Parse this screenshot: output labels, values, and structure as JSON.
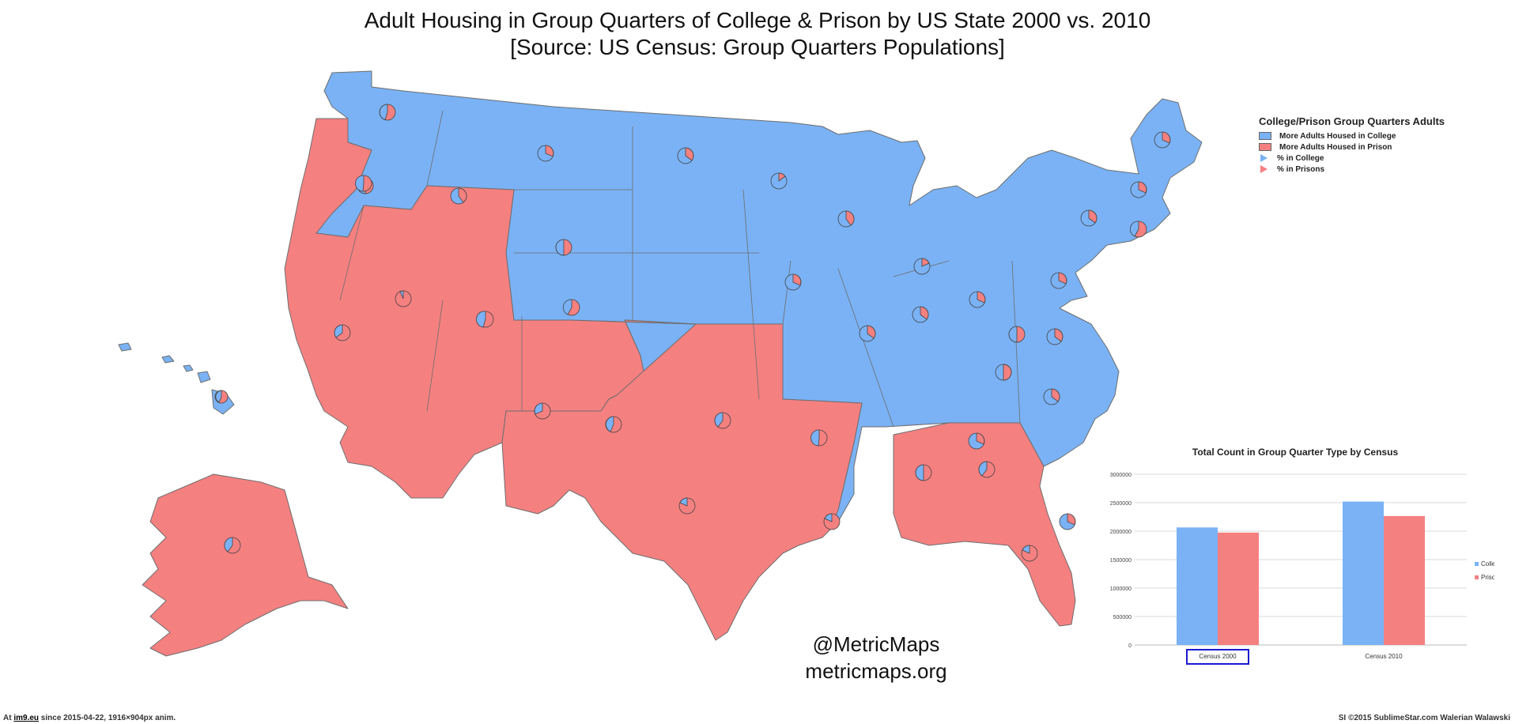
{
  "title": "Adult Housing in Group Quarters of  College & Prison by US State 2000 vs. 2010",
  "subtitle": "[Source:  US Census: Group Quarters Populations]",
  "colors": {
    "college": "#7ab2f5",
    "prison": "#f58080",
    "border": "#6e6e6e",
    "grid": "#d9d9d9"
  },
  "legend": {
    "title": "College/Prison Group Quarters Adults",
    "items": [
      {
        "label": "More Adults Housed in College",
        "kind": "swatch",
        "color": "#7ab2f5"
      },
      {
        "label": "More Adults Housed in Prison",
        "kind": "swatch",
        "color": "#f58080"
      },
      {
        "label": "% in College",
        "kind": "triangle",
        "color": "#7ab2f5"
      },
      {
        "label": "% in Prisons",
        "kind": "triangle",
        "color": "#f58080"
      }
    ]
  },
  "credits": {
    "handle": "@MetricMaps",
    "site": "metricmaps.org"
  },
  "footer": {
    "left_prefix": "At ",
    "left_link": "im9.eu",
    "left_suffix": " since 2015-04-22, 1916×904px anim.",
    "right": "SI ©2015 SublimeStar.com Walerian Walawski"
  },
  "chart_data": {
    "type": "bar",
    "title": "Total Count in Group Quarter Type by Census",
    "categories": [
      "Census 2000",
      "Census 2010"
    ],
    "series": [
      {
        "name": "College Group Quarters",
        "color": "#7ab2f5",
        "values": [
          2065000,
          2520000
        ]
      },
      {
        "name": "Prison Group Quarters",
        "color": "#f58080",
        "values": [
          1975000,
          2265000
        ]
      }
    ],
    "ylim": [
      0,
      3000000
    ],
    "yticks": [
      "0",
      "500000",
      "1000000",
      "1500000",
      "2000000",
      "2500000",
      "3000000"
    ],
    "grid": true,
    "legend_position": "right",
    "highlighted_category": "Census 2000"
  }
}
